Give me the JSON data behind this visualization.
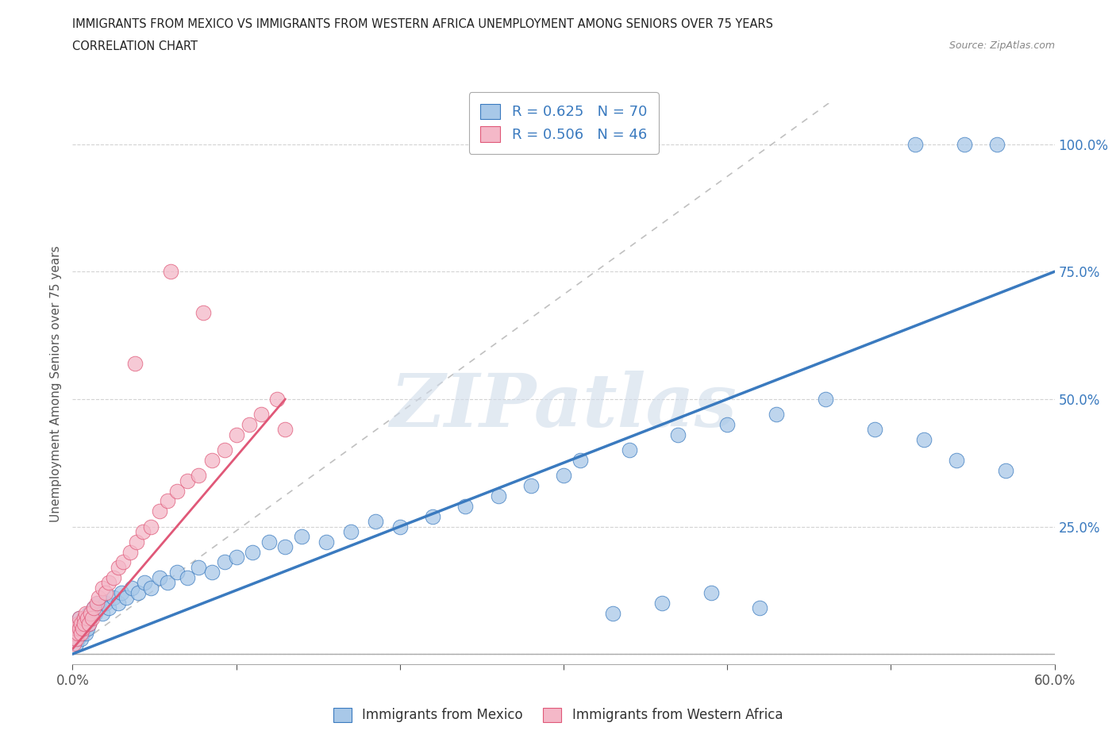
{
  "title_line1": "IMMIGRANTS FROM MEXICO VS IMMIGRANTS FROM WESTERN AFRICA UNEMPLOYMENT AMONG SENIORS OVER 75 YEARS",
  "title_line2": "CORRELATION CHART",
  "source_text": "Source: ZipAtlas.com",
  "ylabel": "Unemployment Among Seniors over 75 years",
  "xlim": [
    0.0,
    0.6
  ],
  "ylim": [
    -0.02,
    1.08
  ],
  "color_mexico": "#a8c8e8",
  "color_wa": "#f4b8c8",
  "color_mexico_line": "#3a7abf",
  "color_wa_line": "#e05878",
  "legend_label1": "Immigrants from Mexico",
  "legend_label2": "Immigrants from Western Africa",
  "watermark_text": "ZIPatlas",
  "mexico_x": [
    0.001,
    0.002,
    0.002,
    0.003,
    0.003,
    0.004,
    0.004,
    0.005,
    0.005,
    0.006,
    0.006,
    0.007,
    0.007,
    0.008,
    0.008,
    0.009,
    0.01,
    0.01,
    0.011,
    0.012,
    0.013,
    0.014,
    0.015,
    0.016,
    0.018,
    0.02,
    0.022,
    0.025,
    0.028,
    0.03,
    0.033,
    0.036,
    0.04,
    0.044,
    0.048,
    0.053,
    0.058,
    0.064,
    0.07,
    0.077,
    0.085,
    0.093,
    0.1,
    0.11,
    0.12,
    0.13,
    0.14,
    0.155,
    0.17,
    0.185,
    0.2,
    0.22,
    0.24,
    0.26,
    0.28,
    0.3,
    0.33,
    0.36,
    0.39,
    0.42,
    0.31,
    0.34,
    0.37,
    0.4,
    0.43,
    0.46,
    0.49,
    0.52,
    0.54,
    0.57,
    0.515,
    0.545,
    0.565
  ],
  "mexico_y": [
    0.03,
    0.02,
    0.05,
    0.03,
    0.06,
    0.04,
    0.07,
    0.03,
    0.05,
    0.04,
    0.06,
    0.05,
    0.07,
    0.04,
    0.06,
    0.05,
    0.06,
    0.08,
    0.07,
    0.08,
    0.09,
    0.08,
    0.09,
    0.1,
    0.08,
    0.1,
    0.09,
    0.11,
    0.1,
    0.12,
    0.11,
    0.13,
    0.12,
    0.14,
    0.13,
    0.15,
    0.14,
    0.16,
    0.15,
    0.17,
    0.16,
    0.18,
    0.19,
    0.2,
    0.22,
    0.21,
    0.23,
    0.22,
    0.24,
    0.26,
    0.25,
    0.27,
    0.29,
    0.31,
    0.33,
    0.35,
    0.08,
    0.1,
    0.12,
    0.09,
    0.38,
    0.4,
    0.43,
    0.45,
    0.47,
    0.5,
    0.44,
    0.42,
    0.38,
    0.36,
    1.0,
    1.0,
    1.0
  ],
  "wa_x": [
    0.001,
    0.001,
    0.002,
    0.002,
    0.003,
    0.003,
    0.004,
    0.004,
    0.005,
    0.005,
    0.006,
    0.007,
    0.007,
    0.008,
    0.009,
    0.01,
    0.011,
    0.012,
    0.013,
    0.015,
    0.016,
    0.018,
    0.02,
    0.022,
    0.025,
    0.028,
    0.031,
    0.035,
    0.039,
    0.043,
    0.048,
    0.053,
    0.058,
    0.064,
    0.07,
    0.077,
    0.085,
    0.093,
    0.1,
    0.108,
    0.115,
    0.125,
    0.13,
    0.038,
    0.06,
    0.08
  ],
  "wa_y": [
    0.02,
    0.04,
    0.03,
    0.05,
    0.04,
    0.06,
    0.05,
    0.07,
    0.04,
    0.06,
    0.05,
    0.07,
    0.06,
    0.08,
    0.07,
    0.06,
    0.08,
    0.07,
    0.09,
    0.1,
    0.11,
    0.13,
    0.12,
    0.14,
    0.15,
    0.17,
    0.18,
    0.2,
    0.22,
    0.24,
    0.25,
    0.28,
    0.3,
    0.32,
    0.34,
    0.35,
    0.38,
    0.4,
    0.43,
    0.45,
    0.47,
    0.5,
    0.44,
    0.57,
    0.75,
    0.67
  ],
  "mexico_trend": [
    0.0,
    0.0,
    0.6,
    0.75
  ],
  "wa_trend_solid": [
    0.0,
    0.01,
    0.13,
    0.5
  ],
  "wa_trend_dashed": [
    0.0,
    0.01,
    0.6,
    1.4
  ],
  "grid_color": "#c8c8c8",
  "bg_color": "#ffffff"
}
